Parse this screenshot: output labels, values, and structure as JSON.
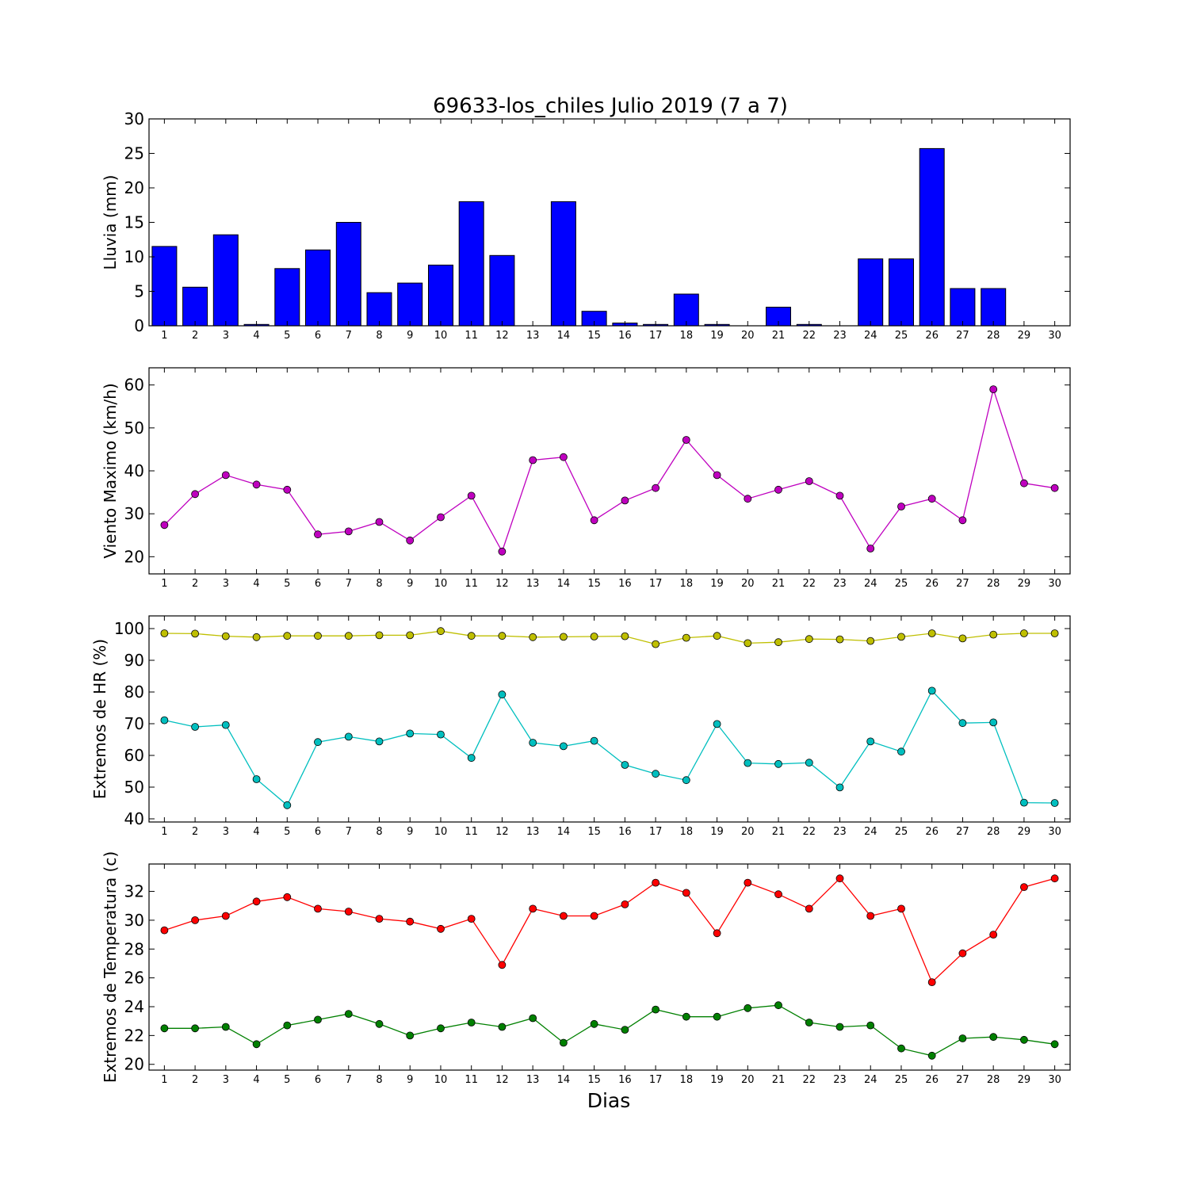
{
  "title": "69633-los_chiles Julio 2019  (7 a 7)",
  "xlabel": "Dias",
  "days": [
    1,
    2,
    3,
    4,
    5,
    6,
    7,
    8,
    9,
    10,
    11,
    12,
    13,
    14,
    15,
    16,
    17,
    18,
    19,
    20,
    21,
    22,
    23,
    24,
    25,
    26,
    27,
    28,
    29,
    30
  ],
  "colors": {
    "bars": "#0000ff",
    "wind": "#bf00bf",
    "hr_max": "#bfbf00",
    "hr_min": "#00bfbf",
    "t_max": "#ff0000",
    "t_min": "#008000"
  },
  "chart_data": [
    {
      "type": "bar",
      "ylabel": "Lluvia (mm)",
      "ylim": [
        0,
        30
      ],
      "yticks": [
        0,
        5,
        10,
        15,
        20,
        25,
        30
      ],
      "categories": [
        1,
        2,
        3,
        4,
        5,
        6,
        7,
        8,
        9,
        10,
        11,
        12,
        13,
        14,
        15,
        16,
        17,
        18,
        19,
        20,
        21,
        22,
        23,
        24,
        25,
        26,
        27,
        28,
        29,
        30
      ],
      "values": [
        11.5,
        5.6,
        13.2,
        0.2,
        8.3,
        11.0,
        15.0,
        4.8,
        6.2,
        8.8,
        18.0,
        10.2,
        0.0,
        18.0,
        2.1,
        0.4,
        0.2,
        4.6,
        0.2,
        0.0,
        2.7,
        0.2,
        0.0,
        9.7,
        9.7,
        25.7,
        5.4,
        5.4,
        0.0,
        0.0
      ]
    },
    {
      "type": "line",
      "ylabel": "Viento Maximo (km/h)",
      "ylim": [
        16,
        64
      ],
      "yticks": [
        20,
        30,
        40,
        50,
        60
      ],
      "x": [
        1,
        2,
        3,
        4,
        5,
        6,
        7,
        8,
        9,
        10,
        11,
        12,
        13,
        14,
        15,
        16,
        17,
        18,
        19,
        20,
        21,
        22,
        23,
        24,
        25,
        26,
        27,
        28,
        29,
        30
      ],
      "series": [
        {
          "values": [
            27.4,
            34.6,
            39.0,
            36.8,
            35.6,
            25.2,
            25.9,
            28.1,
            23.8,
            29.2,
            34.2,
            21.2,
            42.5,
            43.2,
            28.5,
            33.1,
            36.0,
            47.2,
            39.0,
            33.5,
            35.6,
            37.6,
            34.2,
            21.9,
            31.7,
            33.5,
            28.5,
            59.0,
            37.1,
            36.0
          ]
        }
      ]
    },
    {
      "type": "line",
      "ylabel": "Extremos de HR (%)",
      "ylim": [
        39,
        104
      ],
      "yticks": [
        40,
        50,
        60,
        70,
        80,
        90,
        100
      ],
      "x": [
        1,
        2,
        3,
        4,
        5,
        6,
        7,
        8,
        9,
        10,
        11,
        12,
        13,
        14,
        15,
        16,
        17,
        18,
        19,
        20,
        21,
        22,
        23,
        24,
        25,
        26,
        27,
        28,
        29,
        30
      ],
      "series": [
        {
          "values": [
            98.5,
            98.4,
            97.6,
            97.3,
            97.7,
            97.7,
            97.7,
            97.9,
            97.9,
            99.2,
            97.7,
            97.7,
            97.3,
            97.4,
            97.5,
            97.6,
            95.1,
            97.1,
            97.7,
            95.4,
            95.7,
            96.7,
            96.6,
            96.1,
            97.4,
            98.5,
            96.9,
            98.1,
            98.5,
            98.5
          ]
        },
        {
          "values": [
            71.1,
            69.0,
            69.6,
            52.5,
            44.3,
            64.2,
            65.9,
            64.4,
            66.9,
            66.6,
            59.2,
            79.2,
            64.0,
            62.9,
            64.6,
            57.0,
            54.2,
            52.2,
            69.9,
            57.6,
            57.3,
            57.7,
            49.9,
            64.4,
            61.2,
            80.4,
            70.2,
            70.4,
            45.1,
            45.0
          ]
        }
      ]
    },
    {
      "type": "line",
      "ylabel": "Extremos de Temperatura (c)",
      "ylim": [
        19.6,
        33.9
      ],
      "yticks": [
        20,
        22,
        24,
        26,
        28,
        30,
        32
      ],
      "x": [
        1,
        2,
        3,
        4,
        5,
        6,
        7,
        8,
        9,
        10,
        11,
        12,
        13,
        14,
        15,
        16,
        17,
        18,
        19,
        20,
        21,
        22,
        23,
        24,
        25,
        26,
        27,
        28,
        29,
        30
      ],
      "series": [
        {
          "values": [
            29.3,
            30.0,
            30.3,
            31.3,
            31.6,
            30.8,
            30.6,
            30.1,
            29.9,
            29.4,
            30.1,
            26.9,
            30.8,
            30.3,
            30.3,
            31.1,
            32.6,
            31.9,
            29.1,
            32.6,
            31.8,
            30.8,
            32.9,
            30.3,
            30.8,
            25.7,
            27.7,
            29.0,
            32.3,
            32.9
          ]
        },
        {
          "values": [
            22.5,
            22.5,
            22.6,
            21.4,
            22.7,
            23.1,
            23.5,
            22.8,
            22.0,
            22.5,
            22.9,
            22.6,
            23.2,
            21.5,
            22.8,
            22.4,
            23.8,
            23.3,
            23.3,
            23.9,
            24.1,
            22.9,
            22.6,
            22.7,
            21.1,
            20.6,
            21.8,
            21.9,
            21.7,
            21.4
          ]
        }
      ]
    }
  ]
}
